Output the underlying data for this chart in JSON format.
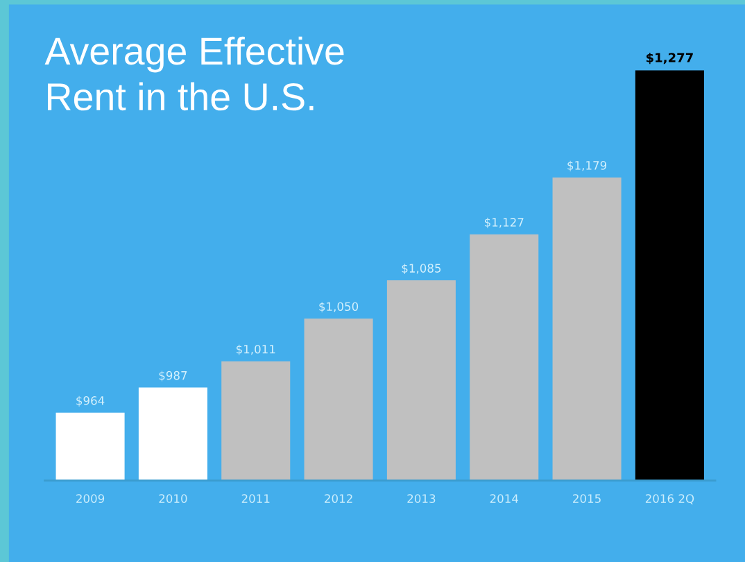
{
  "chart_data": {
    "type": "bar",
    "title": "Average Effective\nRent in the U.S.",
    "categories": [
      "2009",
      "2010",
      "2011",
      "2012",
      "2013",
      "2014",
      "2015",
      "2016 2Q"
    ],
    "values": [
      964,
      987,
      1011,
      1050,
      1085,
      1127,
      1179,
      1277
    ],
    "value_labels": [
      "$964",
      "$987",
      "$1,011",
      "$1,050",
      "$1,085",
      "$1,127",
      "$1,179",
      "$1,277"
    ],
    "colors": [
      "#ffffff",
      "#ffffff",
      "#c0c0c0",
      "#c0c0c0",
      "#c0c0c0",
      "#c0c0c0",
      "#c0c0c0",
      "#000000"
    ],
    "ylim": [
      902,
      1277
    ],
    "grid": false,
    "legend": false
  }
}
